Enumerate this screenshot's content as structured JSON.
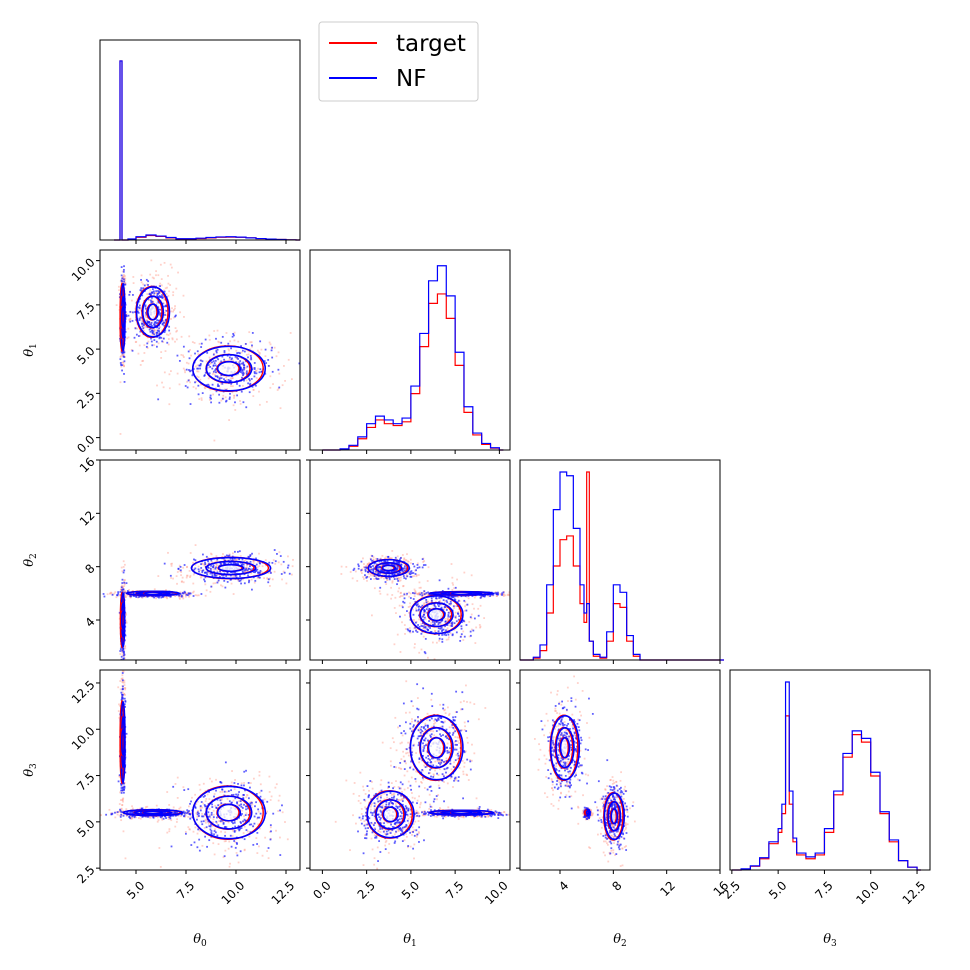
{
  "chart_data": {
    "type": "corner",
    "legend": {
      "placement": "top-center",
      "entries": [
        {
          "label": "target",
          "color": "#ff0000"
        },
        {
          "label": "NF",
          "color": "#0000ff"
        }
      ]
    },
    "parameters": [
      {
        "key": "theta0",
        "label": "θ",
        "sub": "0",
        "range": [
          3.2,
          13.2
        ],
        "ticks": [
          5.0,
          7.5,
          10.0,
          12.5
        ],
        "tick_labels": [
          "5.0",
          "7.5",
          "10.0",
          "12.5"
        ]
      },
      {
        "key": "theta1",
        "label": "θ",
        "sub": "1",
        "range": [
          -0.7,
          10.6
        ],
        "ticks": [
          0.0,
          2.5,
          5.0,
          7.5,
          10.0
        ],
        "tick_labels": [
          "0.0",
          "2.5",
          "5.0",
          "7.5",
          "10.0"
        ]
      },
      {
        "key": "theta2",
        "label": "θ",
        "sub": "2",
        "range": [
          1.0,
          16.0
        ],
        "ticks": [
          4,
          8,
          12,
          16
        ],
        "tick_labels": [
          "4",
          "8",
          "12",
          "16"
        ]
      },
      {
        "key": "theta3",
        "label": "θ",
        "sub": "3",
        "range": [
          2.4,
          13.2
        ],
        "ticks": [
          2.5,
          5.0,
          7.5,
          10.0,
          12.5
        ],
        "tick_labels": [
          "2.5",
          "5.0",
          "7.5",
          "10.0",
          "12.5"
        ]
      }
    ],
    "histograms": [
      {
        "param": 0,
        "ymax": 1.05,
        "x": [
          3.9,
          4.0,
          4.1,
          4.2,
          4.3,
          4.4,
          4.6,
          5.0,
          5.5,
          6.0,
          6.5,
          7.0,
          7.5,
          8.0,
          8.5,
          9.0,
          9.5,
          10.0,
          10.5,
          11.0,
          11.5,
          12.0,
          12.5,
          13.0
        ],
        "series": [
          {
            "name": "target",
            "color": "#ff0000",
            "values": [
              0,
              0,
              0,
              1.0,
              0,
              0,
              0.005,
              0.015,
              0.025,
              0.02,
              0.012,
              0.006,
              0.006,
              0.008,
              0.012,
              0.015,
              0.016,
              0.015,
              0.012,
              0.008,
              0.005,
              0.003,
              0.001,
              0
            ]
          },
          {
            "name": "NF",
            "color": "#0000ff",
            "values": [
              0,
              0,
              0,
              1.0,
              0,
              0,
              0.006,
              0.018,
              0.028,
              0.022,
              0.014,
              0.007,
              0.007,
              0.01,
              0.014,
              0.017,
              0.018,
              0.016,
              0.012,
              0.008,
              0.005,
              0.003,
              0.001,
              0
            ]
          }
        ]
      },
      {
        "param": 1,
        "ymax": 1.0,
        "x": [
          0,
          1.0,
          1.5,
          2.0,
          2.5,
          3.0,
          3.5,
          4.0,
          4.5,
          5.0,
          5.5,
          6.0,
          6.5,
          7.0,
          7.5,
          8.0,
          8.5,
          9.0,
          9.5,
          10.0
        ],
        "series": [
          {
            "name": "target",
            "color": "#ff0000",
            "values": [
              0,
              0.005,
              0.02,
              0.06,
              0.12,
              0.16,
              0.14,
              0.13,
              0.15,
              0.3,
              0.55,
              0.78,
              0.83,
              0.7,
              0.45,
              0.2,
              0.08,
              0.03,
              0.01,
              0
            ]
          },
          {
            "name": "NF",
            "color": "#0000ff",
            "values": [
              0,
              0.006,
              0.025,
              0.07,
              0.14,
              0.18,
              0.16,
              0.14,
              0.17,
              0.34,
              0.62,
              0.9,
              0.98,
              0.82,
              0.52,
              0.23,
              0.09,
              0.035,
              0.012,
              0
            ]
          }
        ]
      },
      {
        "param": 2,
        "ymax": 1.0,
        "x": [
          1.0,
          2.0,
          2.5,
          3.0,
          3.5,
          4.0,
          4.5,
          5.0,
          5.5,
          5.8,
          6.0,
          6.2,
          6.5,
          7.0,
          7.5,
          8.0,
          8.5,
          9.0,
          9.5,
          10.0,
          16.0
        ],
        "series": [
          {
            "name": "target",
            "color": "#ff0000",
            "values": [
              0,
              0.01,
              0.05,
              0.25,
              0.5,
              0.64,
              0.66,
              0.5,
              0.3,
              0.2,
              1.0,
              0.1,
              0.02,
              0.01,
              0.1,
              0.3,
              0.28,
              0.1,
              0.02,
              0,
              0
            ]
          },
          {
            "name": "NF",
            "color": "#0000ff",
            "values": [
              0,
              0.015,
              0.08,
              0.4,
              0.8,
              1.0,
              0.98,
              0.7,
              0.4,
              0.25,
              0.3,
              0.1,
              0.03,
              0.015,
              0.15,
              0.4,
              0.36,
              0.13,
              0.03,
              0,
              0
            ]
          }
        ]
      },
      {
        "param": 3,
        "ymax": 1.0,
        "x": [
          2.5,
          3.0,
          3.5,
          4.0,
          4.5,
          5.0,
          5.2,
          5.4,
          5.6,
          5.8,
          6.0,
          6.5,
          7.0,
          7.5,
          8.0,
          8.5,
          9.0,
          9.5,
          10.0,
          10.5,
          11.0,
          11.5,
          12.0,
          12.5
        ],
        "series": [
          {
            "name": "target",
            "color": "#ff0000",
            "values": [
              0,
              0.005,
              0.02,
              0.06,
              0.14,
              0.2,
              0.3,
              0.82,
              0.35,
              0.15,
              0.08,
              0.06,
              0.08,
              0.2,
              0.4,
              0.6,
              0.72,
              0.68,
              0.5,
              0.3,
              0.15,
              0.05,
              0.015,
              0
            ]
          },
          {
            "name": "NF",
            "color": "#0000ff",
            "values": [
              0,
              0.006,
              0.022,
              0.065,
              0.15,
              0.22,
              0.35,
              1.0,
              0.42,
              0.17,
              0.09,
              0.07,
              0.09,
              0.22,
              0.42,
              0.62,
              0.74,
              0.7,
              0.52,
              0.31,
              0.16,
              0.05,
              0.015,
              0
            ]
          }
        ]
      }
    ],
    "scatter_panels": [
      {
        "x_param": 0,
        "y_param": 1,
        "clusters": [
          {
            "cx": 4.3,
            "cy": 6.8,
            "sx": 0.06,
            "sy": 1.2
          },
          {
            "cx": 5.8,
            "cy": 7.1,
            "sx": 0.5,
            "sy": 0.9
          },
          {
            "cx": 9.6,
            "cy": 3.9,
            "sx": 1.1,
            "sy": 0.8
          }
        ]
      },
      {
        "x_param": 0,
        "y_param": 2,
        "clusters": [
          {
            "cx": 4.3,
            "cy": 4.0,
            "sx": 0.05,
            "sy": 1.3
          },
          {
            "cx": 5.8,
            "cy": 6.0,
            "sx": 0.8,
            "sy": 0.1
          },
          {
            "cx": 9.7,
            "cy": 7.9,
            "sx": 1.2,
            "sy": 0.5
          }
        ]
      },
      {
        "x_param": 0,
        "y_param": 3,
        "clusters": [
          {
            "cx": 4.3,
            "cy": 9.3,
            "sx": 0.06,
            "sy": 1.4
          },
          {
            "cx": 5.8,
            "cy": 5.5,
            "sx": 0.9,
            "sy": 0.1
          },
          {
            "cx": 9.6,
            "cy": 5.5,
            "sx": 1.1,
            "sy": 0.9
          }
        ]
      },
      {
        "x_param": 1,
        "y_param": 2,
        "clusters": [
          {
            "cx": 3.7,
            "cy": 7.9,
            "sx": 0.7,
            "sy": 0.4
          },
          {
            "cx": 6.4,
            "cy": 4.4,
            "sx": 0.9,
            "sy": 0.9
          },
          {
            "cx": 7.8,
            "cy": 6.0,
            "sx": 1.1,
            "sy": 0.08
          }
        ]
      },
      {
        "x_param": 1,
        "y_param": 3,
        "clusters": [
          {
            "cx": 6.4,
            "cy": 9.0,
            "sx": 0.9,
            "sy": 1.1
          },
          {
            "cx": 3.8,
            "cy": 5.4,
            "sx": 0.8,
            "sy": 0.8
          },
          {
            "cx": 7.8,
            "cy": 5.5,
            "sx": 1.1,
            "sy": 0.08
          }
        ]
      },
      {
        "x_param": 2,
        "y_param": 3,
        "clusters": [
          {
            "cx": 4.3,
            "cy": 9.0,
            "sx": 0.65,
            "sy": 1.1
          },
          {
            "cx": 8.0,
            "cy": 5.3,
            "sx": 0.45,
            "sy": 0.8
          },
          {
            "cx": 6.0,
            "cy": 5.5,
            "sx": 0.1,
            "sy": 0.1
          }
        ]
      }
    ]
  }
}
